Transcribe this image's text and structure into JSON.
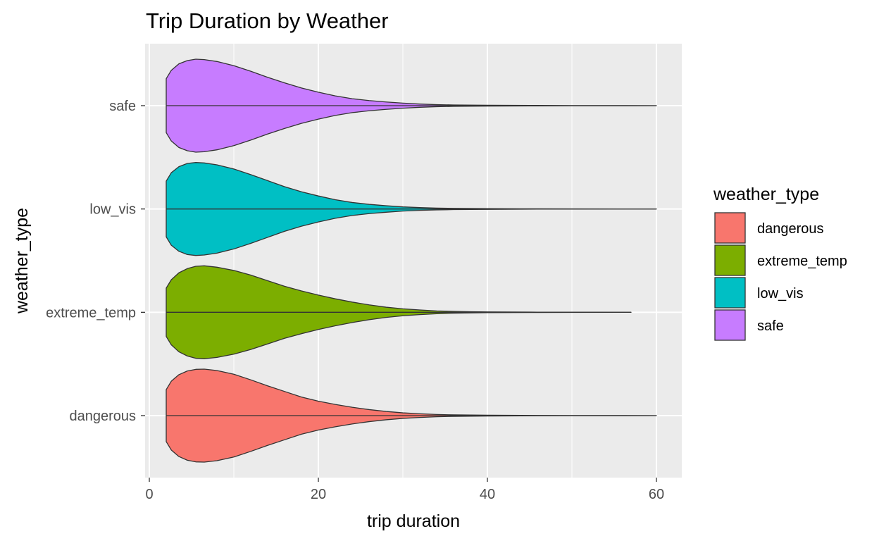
{
  "chart_data": {
    "type": "violin",
    "orientation": "horizontal",
    "title": "Trip Duration by Weather",
    "xlabel": "trip duration",
    "ylabel": "weather_type",
    "xlim": [
      -0.5,
      63
    ],
    "x_ticks": [
      0,
      20,
      40,
      60
    ],
    "x_minor_ticks": [
      10,
      30,
      50
    ],
    "categories": [
      "dangerous",
      "extreme_temp",
      "low_vis",
      "safe"
    ],
    "grid": true,
    "legend": {
      "title": "weather_type",
      "position": "right",
      "entries": [
        "dangerous",
        "extreme_temp",
        "low_vis",
        "safe"
      ]
    },
    "series": [
      {
        "name": "dangerous",
        "color": "#F8766D",
        "min": 2,
        "max": 60,
        "profile": [
          [
            2,
            0.56
          ],
          [
            2.6,
            0.74
          ],
          [
            3.5,
            0.88
          ],
          [
            4.5,
            0.96
          ],
          [
            5.5,
            0.995
          ],
          [
            6.5,
            1.0
          ],
          [
            8,
            0.97
          ],
          [
            10,
            0.89
          ],
          [
            12,
            0.77
          ],
          [
            14,
            0.64
          ],
          [
            16,
            0.52
          ],
          [
            18,
            0.4
          ],
          [
            20,
            0.31
          ],
          [
            22,
            0.24
          ],
          [
            24,
            0.18
          ],
          [
            26,
            0.13
          ],
          [
            28,
            0.09
          ],
          [
            30,
            0.06
          ],
          [
            32,
            0.04
          ],
          [
            34,
            0.025
          ],
          [
            36,
            0.016
          ],
          [
            40,
            0.01
          ],
          [
            44,
            0.005
          ],
          [
            50,
            0.002
          ],
          [
            60,
            0
          ]
        ]
      },
      {
        "name": "extreme_temp",
        "color": "#7CAE00",
        "min": 2,
        "max": 57,
        "profile": [
          [
            2,
            0.52
          ],
          [
            2.6,
            0.7
          ],
          [
            3.5,
            0.85
          ],
          [
            4.5,
            0.94
          ],
          [
            5.5,
            0.99
          ],
          [
            6.5,
            1.0
          ],
          [
            8,
            0.97
          ],
          [
            10,
            0.9
          ],
          [
            12,
            0.8
          ],
          [
            14,
            0.68
          ],
          [
            16,
            0.56
          ],
          [
            18,
            0.46
          ],
          [
            20,
            0.37
          ],
          [
            22,
            0.29
          ],
          [
            24,
            0.22
          ],
          [
            26,
            0.16
          ],
          [
            28,
            0.11
          ],
          [
            30,
            0.075
          ],
          [
            32,
            0.05
          ],
          [
            34,
            0.03
          ],
          [
            36,
            0.02
          ],
          [
            38,
            0.013
          ],
          [
            40,
            0.008
          ],
          [
            45,
            0.004
          ],
          [
            50,
            0.002
          ],
          [
            57,
            0
          ]
        ]
      },
      {
        "name": "low_vis",
        "color": "#00BFC4",
        "min": 2,
        "max": 60,
        "profile": [
          [
            2,
            0.6
          ],
          [
            2.6,
            0.78
          ],
          [
            3.5,
            0.91
          ],
          [
            4.5,
            0.98
          ],
          [
            5.5,
            1.0
          ],
          [
            6.5,
            0.99
          ],
          [
            8,
            0.95
          ],
          [
            10,
            0.86
          ],
          [
            12,
            0.74
          ],
          [
            14,
            0.61
          ],
          [
            16,
            0.48
          ],
          [
            18,
            0.37
          ],
          [
            20,
            0.28
          ],
          [
            22,
            0.2
          ],
          [
            24,
            0.14
          ],
          [
            26,
            0.1
          ],
          [
            28,
            0.07
          ],
          [
            30,
            0.045
          ],
          [
            32,
            0.03
          ],
          [
            34,
            0.02
          ],
          [
            36,
            0.013
          ],
          [
            40,
            0.008
          ],
          [
            44,
            0.004
          ],
          [
            50,
            0.002
          ],
          [
            60,
            0
          ]
        ]
      },
      {
        "name": "safe",
        "color": "#C77CFF",
        "min": 2,
        "max": 60,
        "profile": [
          [
            2,
            0.58
          ],
          [
            2.6,
            0.76
          ],
          [
            3.5,
            0.9
          ],
          [
            4.5,
            0.97
          ],
          [
            5.5,
            1.0
          ],
          [
            6.5,
            0.99
          ],
          [
            8,
            0.95
          ],
          [
            10,
            0.86
          ],
          [
            12,
            0.74
          ],
          [
            14,
            0.61
          ],
          [
            16,
            0.49
          ],
          [
            18,
            0.38
          ],
          [
            20,
            0.29
          ],
          [
            22,
            0.21
          ],
          [
            24,
            0.15
          ],
          [
            26,
            0.11
          ],
          [
            28,
            0.08
          ],
          [
            30,
            0.055
          ],
          [
            32,
            0.035
          ],
          [
            34,
            0.022
          ],
          [
            36,
            0.015
          ],
          [
            40,
            0.01
          ],
          [
            45,
            0.005
          ],
          [
            50,
            0.002
          ],
          [
            60,
            0
          ]
        ]
      }
    ]
  }
}
